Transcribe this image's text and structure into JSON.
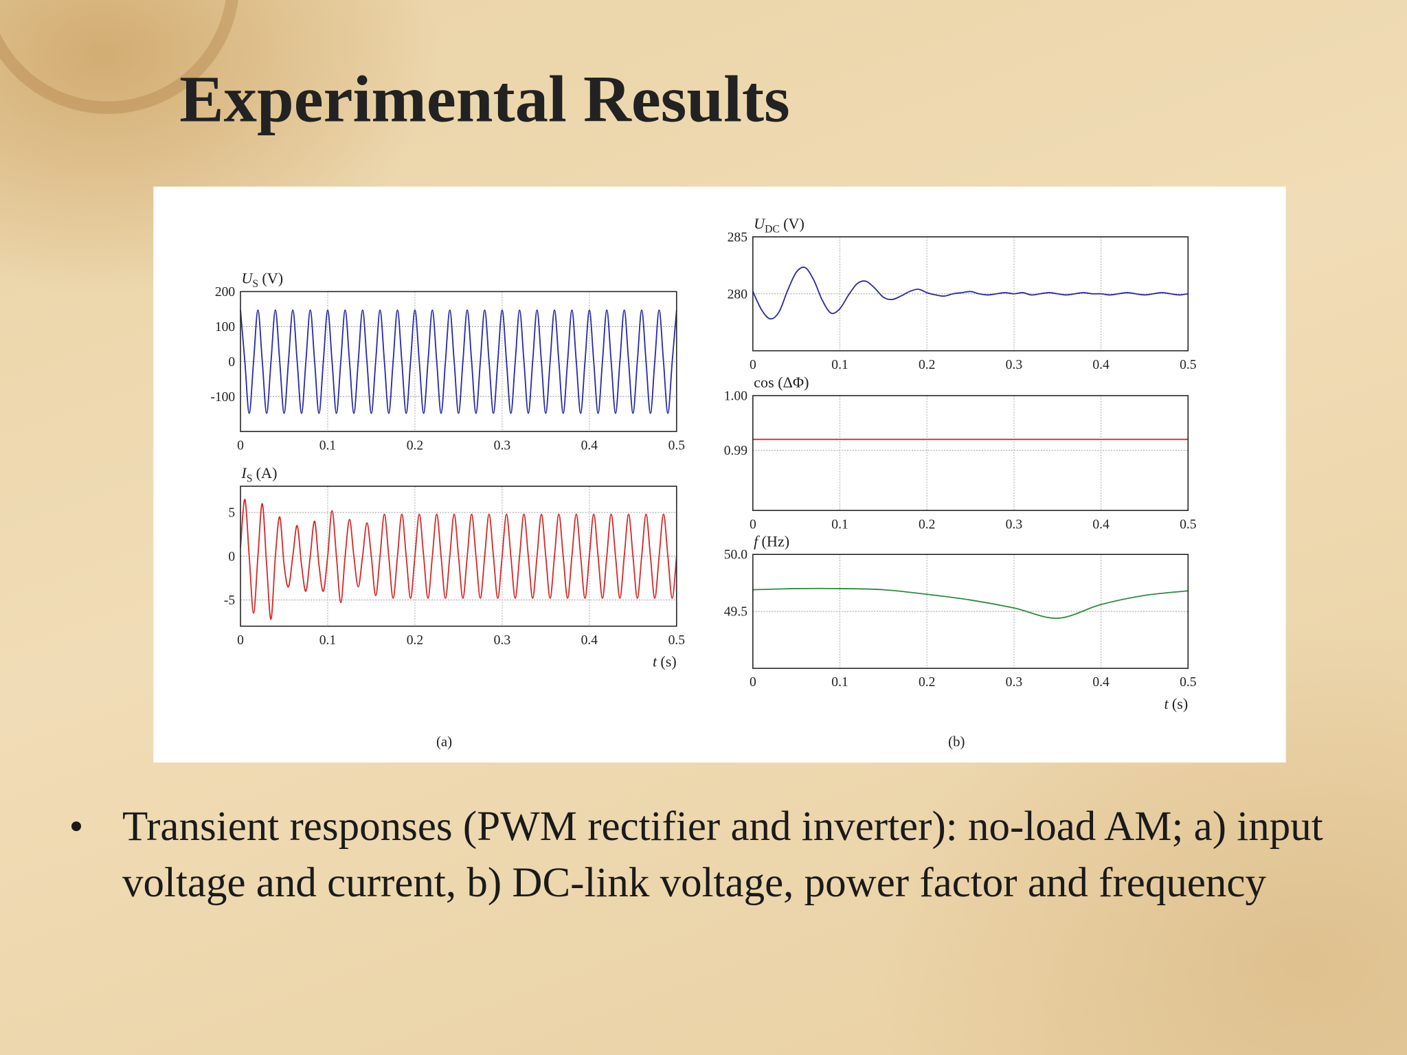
{
  "slide": {
    "title": "Experimental Results",
    "bullets": [
      "Transient responses (PWM rectifier and inverter): no-load AM; a) input voltage and current, b) DC-link voltage, power factor and frequency"
    ]
  },
  "figure": {
    "captions": [
      "(a)",
      "(b)"
    ]
  },
  "chart_data": [
    {
      "type": "line",
      "ylabel": {
        "main": "U",
        "sub": "S",
        "unit": "(V)"
      },
      "xlim": [
        0,
        0.5
      ],
      "xticks": [
        0,
        0.1,
        0.2,
        0.3,
        0.4,
        0.5
      ],
      "ylim": [
        -200,
        200
      ],
      "yticks": [
        -100,
        0,
        100,
        200
      ],
      "grid": true,
      "x": [
        0,
        0.005,
        0.01,
        0.015,
        0.02,
        0.025,
        0.03,
        0.035,
        0.04,
        0.045,
        0.05,
        0.055,
        0.06,
        0.065,
        0.07,
        0.075,
        0.08,
        0.085,
        0.09,
        0.095,
        0.1,
        0.105,
        0.11,
        0.115,
        0.12,
        0.125,
        0.13,
        0.135,
        0.14,
        0.145,
        0.15,
        0.155,
        0.16,
        0.165,
        0.17,
        0.175,
        0.18,
        0.185,
        0.19,
        0.195,
        0.2,
        0.205,
        0.21,
        0.215,
        0.22,
        0.225,
        0.23,
        0.235,
        0.24,
        0.245,
        0.25,
        0.255,
        0.26,
        0.265,
        0.27,
        0.275,
        0.28,
        0.285,
        0.29,
        0.295,
        0.3,
        0.305,
        0.31,
        0.315,
        0.32,
        0.325,
        0.33,
        0.335,
        0.34,
        0.345,
        0.35,
        0.355,
        0.36,
        0.365,
        0.37,
        0.375,
        0.38,
        0.385,
        0.39,
        0.395,
        0.4,
        0.405,
        0.41,
        0.415,
        0.42,
        0.425,
        0.43,
        0.435,
        0.44,
        0.445,
        0.45,
        0.455,
        0.46,
        0.465,
        0.47,
        0.475,
        0.48,
        0.485,
        0.49,
        0.495,
        0.5
      ],
      "series": [
        {
          "color": "#2a2aa8",
          "values": [
            147,
            0,
            -148,
            0,
            147,
            0,
            -148,
            0,
            147,
            0,
            -148,
            0,
            147,
            0,
            -148,
            0,
            147,
            0,
            -148,
            0,
            147,
            0,
            -148,
            0,
            147,
            0,
            -148,
            0,
            147,
            0,
            -148,
            0,
            147,
            0,
            -148,
            0,
            147,
            0,
            -148,
            0,
            147,
            0,
            -148,
            0,
            147,
            0,
            -148,
            0,
            147,
            0,
            -148,
            0,
            147,
            0,
            -148,
            0,
            147,
            0,
            -148,
            0,
            147,
            0,
            -148,
            0,
            147,
            0,
            -148,
            0,
            147,
            0,
            -148,
            0,
            147,
            0,
            -148,
            0,
            147,
            0,
            -148,
            0,
            147,
            0,
            -148,
            0,
            147,
            0,
            -148,
            0,
            147,
            0,
            -148,
            0,
            147,
            0,
            -148,
            0,
            147,
            0,
            -148,
            0,
            147
          ]
        }
      ]
    },
    {
      "type": "line",
      "ylabel": {
        "main": "I",
        "sub": "S",
        "unit": "(A)"
      },
      "xlabel": {
        "main": "t",
        "unit": "(s)"
      },
      "xlim": [
        0,
        0.5
      ],
      "xticks": [
        0,
        0.1,
        0.2,
        0.3,
        0.4,
        0.5
      ],
      "ylim": [
        -8,
        8
      ],
      "yticks": [
        -5,
        0,
        5
      ],
      "grid": true,
      "x": [
        0,
        0.005,
        0.01,
        0.015,
        0.02,
        0.025,
        0.03,
        0.035,
        0.04,
        0.045,
        0.05,
        0.055,
        0.06,
        0.065,
        0.07,
        0.075,
        0.08,
        0.085,
        0.09,
        0.095,
        0.1,
        0.105,
        0.11,
        0.115,
        0.12,
        0.125,
        0.13,
        0.135,
        0.14,
        0.145,
        0.15,
        0.155,
        0.16,
        0.165,
        0.17,
        0.175,
        0.18,
        0.185,
        0.19,
        0.195,
        0.2,
        0.205,
        0.21,
        0.215,
        0.22,
        0.225,
        0.23,
        0.235,
        0.24,
        0.245,
        0.25,
        0.255,
        0.26,
        0.265,
        0.27,
        0.275,
        0.28,
        0.285,
        0.29,
        0.295,
        0.3,
        0.305,
        0.31,
        0.315,
        0.32,
        0.325,
        0.33,
        0.335,
        0.34,
        0.345,
        0.35,
        0.355,
        0.36,
        0.365,
        0.37,
        0.375,
        0.38,
        0.385,
        0.39,
        0.395,
        0.4,
        0.405,
        0.41,
        0.415,
        0.42,
        0.425,
        0.43,
        0.435,
        0.44,
        0.445,
        0.45,
        0.455,
        0.46,
        0.465,
        0.47,
        0.475,
        0.48,
        0.485,
        0.49,
        0.495,
        0.5
      ],
      "series": [
        {
          "color": "#d42a2a",
          "values": [
            1,
            6.5,
            0,
            -6.5,
            0,
            6,
            -1,
            -7.2,
            0,
            4.5,
            -1,
            -3.5,
            0,
            3.5,
            -1,
            -4,
            0,
            4,
            -1,
            -4,
            0,
            5.2,
            0,
            -5.3,
            0,
            4.2,
            0,
            -3.5,
            0,
            3.8,
            0,
            -4.5,
            0,
            4.8,
            0,
            -4.8,
            0,
            4.8,
            0,
            -4.8,
            0,
            4.8,
            0,
            -4.8,
            0,
            4.8,
            0,
            -4.8,
            0,
            4.8,
            0,
            -4.8,
            0,
            4.8,
            0,
            -4.8,
            0,
            4.8,
            0,
            -4.8,
            0,
            4.8,
            0,
            -4.8,
            0,
            4.8,
            0,
            -4.8,
            0,
            4.8,
            0,
            -4.8,
            0,
            4.8,
            0,
            -4.8,
            0,
            4.8,
            0,
            -4.8,
            0,
            4.8,
            0,
            -4.8,
            0,
            4.8,
            0,
            -4.8,
            0,
            4.8,
            0,
            -4.8,
            0,
            4.8,
            0,
            -4.8,
            0,
            4.8,
            0,
            -4.8,
            0
          ]
        }
      ]
    },
    {
      "type": "line",
      "ylabel": {
        "main": "U",
        "sub": "DC",
        "unit": "(V)"
      },
      "xlim": [
        0,
        0.5
      ],
      "xticks": [
        0,
        0.1,
        0.2,
        0.3,
        0.4,
        0.5
      ],
      "ylim": [
        275,
        285
      ],
      "yticks": [
        280,
        285
      ],
      "grid": true,
      "x": [
        0,
        0.01,
        0.02,
        0.03,
        0.04,
        0.05,
        0.06,
        0.07,
        0.08,
        0.09,
        0.1,
        0.11,
        0.12,
        0.13,
        0.14,
        0.15,
        0.16,
        0.17,
        0.18,
        0.19,
        0.2,
        0.21,
        0.22,
        0.23,
        0.24,
        0.25,
        0.26,
        0.27,
        0.28,
        0.29,
        0.3,
        0.31,
        0.32,
        0.33,
        0.34,
        0.35,
        0.36,
        0.37,
        0.38,
        0.39,
        0.4,
        0.41,
        0.42,
        0.43,
        0.44,
        0.45,
        0.46,
        0.47,
        0.48,
        0.49,
        0.5
      ],
      "series": [
        {
          "color": "#2a2aa8",
          "values": [
            280.2,
            278.6,
            277.8,
            278.4,
            280.3,
            281.9,
            282.3,
            281.2,
            279.4,
            278.3,
            278.7,
            279.9,
            280.9,
            281.1,
            280.5,
            279.7,
            279.5,
            279.8,
            280.2,
            280.4,
            280.1,
            279.9,
            279.8,
            280.0,
            280.1,
            280.2,
            280.0,
            279.9,
            280.0,
            280.1,
            280.0,
            280.1,
            279.9,
            280.0,
            280.1,
            280.0,
            279.9,
            280.0,
            280.1,
            280.0,
            280.0,
            279.9,
            280.0,
            280.1,
            280.0,
            279.9,
            280.0,
            280.1,
            280.0,
            279.9,
            280.0
          ]
        }
      ]
    },
    {
      "type": "line",
      "ylabel": {
        "unit": "cos (ΔΦ)"
      },
      "xlim": [
        0,
        0.5
      ],
      "xticks": [
        0,
        0.1,
        0.2,
        0.3,
        0.4,
        0.5
      ],
      "ylim": [
        0.979,
        1
      ],
      "yticks": [
        {
          "value": 1,
          "label": "1.00"
        },
        0.99
      ],
      "grid": true,
      "x": [
        0,
        0.1,
        0.2,
        0.3,
        0.4,
        0.5
      ],
      "series": [
        {
          "color": "#d42a2a",
          "values": [
            0.992,
            0.992,
            0.992,
            0.992,
            0.992,
            0.992
          ]
        }
      ]
    },
    {
      "type": "line",
      "ylabel": {
        "main": "f",
        "unit": "(Hz)"
      },
      "xlabel": {
        "main": "t",
        "unit": "(s)"
      },
      "xlim": [
        0,
        0.5
      ],
      "xticks": [
        0,
        0.1,
        0.2,
        0.3,
        0.4,
        0.5
      ],
      "ylim": [
        49,
        50
      ],
      "yticks": [
        {
          "value": 50,
          "label": "50.0"
        },
        49.5
      ],
      "grid": true,
      "x": [
        0,
        0.05,
        0.1,
        0.15,
        0.2,
        0.25,
        0.3,
        0.35,
        0.4,
        0.45,
        0.5
      ],
      "series": [
        {
          "color": "#2e8b3e",
          "values": [
            49.69,
            49.7,
            49.7,
            49.69,
            49.65,
            49.6,
            49.53,
            49.44,
            49.56,
            49.64,
            49.68
          ]
        }
      ]
    }
  ]
}
